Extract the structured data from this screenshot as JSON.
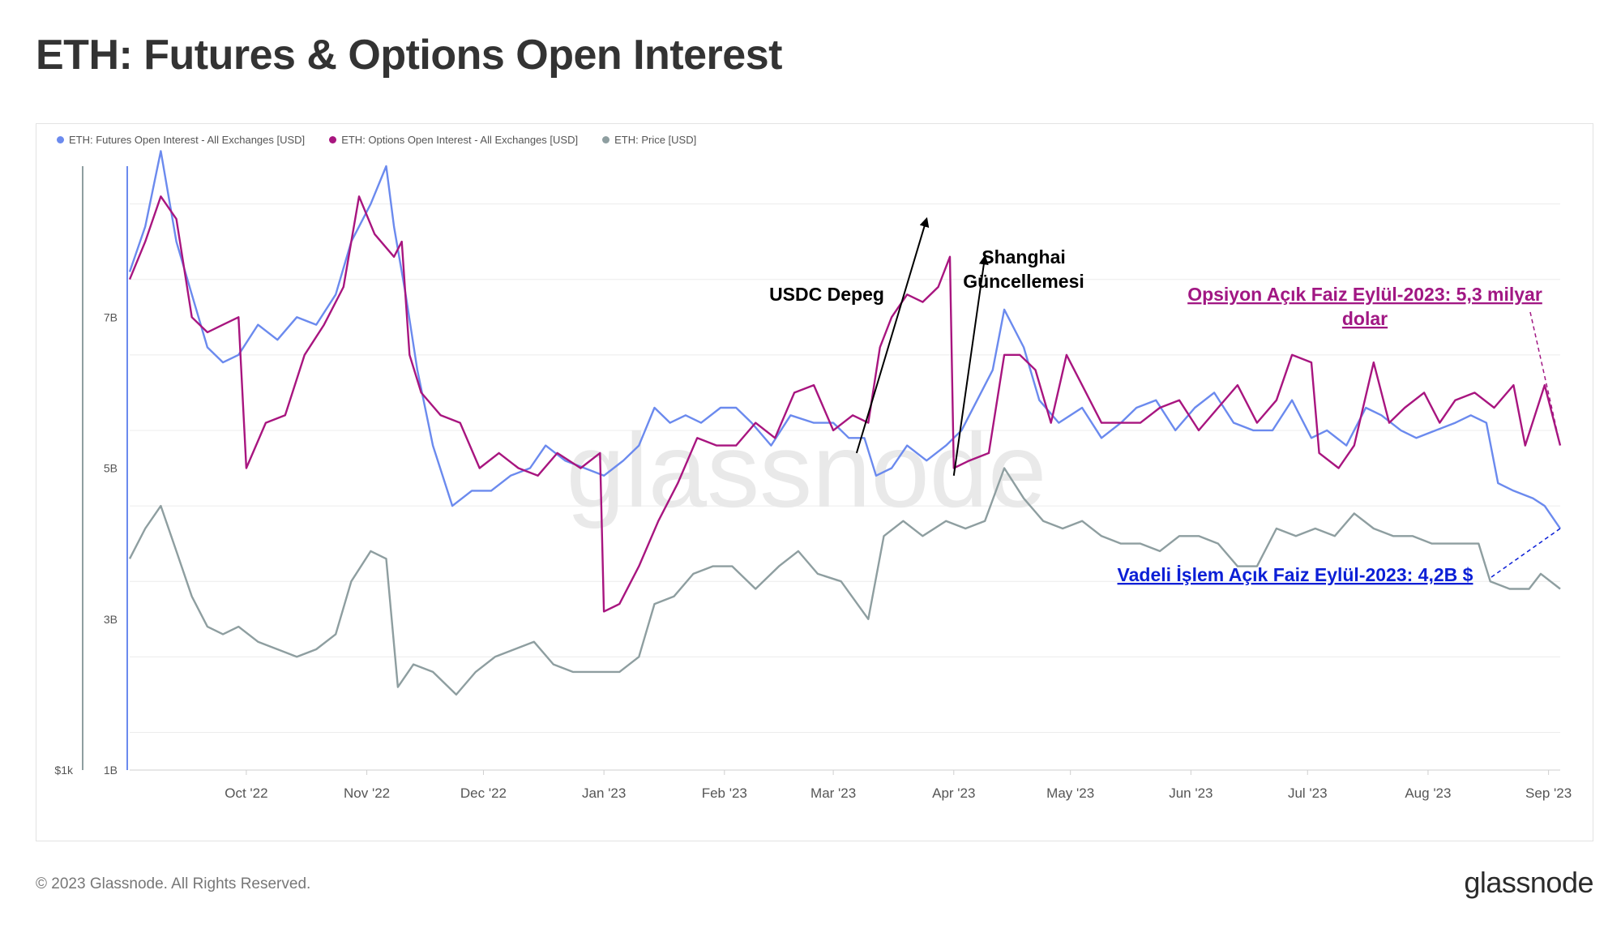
{
  "header": {
    "title": "ETH: Futures & Options Open Interest"
  },
  "footer": {
    "copyright": "© 2023 Glassnode. All Rights Reserved.",
    "brand": "glassnode"
  },
  "watermark": "glassnode",
  "colors": {
    "futures": "#6b8aee",
    "options": "#a8157f",
    "price": "#8e9ea0",
    "ann_options": "#a11783",
    "ann_futures": "#0b1fd6",
    "grid": "#ececec"
  },
  "chart_data": {
    "type": "line",
    "legend_position": "top-left",
    "grid": true,
    "x_tick_labels": [
      "Oct '22",
      "Nov '22",
      "Dec '22",
      "Jan '23",
      "Feb '23",
      "Mar '23",
      "Apr '23",
      "May '23",
      "Jun '23",
      "Jul '23",
      "Aug '23",
      "Sep '23"
    ],
    "y_left_tick_labels": [
      "$1k"
    ],
    "y_right_tick_labels": [
      "1B",
      "3B",
      "5B",
      "7B"
    ],
    "y_unit": "USD",
    "y_range": [
      1,
      9
    ],
    "x_range": [
      "2022-09-01",
      "2023-09-04"
    ],
    "series": [
      {
        "name": "ETH: Futures Open Interest - All Exchanges [USD]",
        "color_key": "futures",
        "points": [
          [
            "2022-09-01",
            7.6
          ],
          [
            "2022-09-05",
            8.2
          ],
          [
            "2022-09-09",
            9.2
          ],
          [
            "2022-09-13",
            8.0
          ],
          [
            "2022-09-17",
            7.3
          ],
          [
            "2022-09-21",
            6.6
          ],
          [
            "2022-09-25",
            6.4
          ],
          [
            "2022-09-29",
            6.5
          ],
          [
            "2022-10-04",
            6.9
          ],
          [
            "2022-10-09",
            6.7
          ],
          [
            "2022-10-14",
            7.0
          ],
          [
            "2022-10-19",
            6.9
          ],
          [
            "2022-10-24",
            7.3
          ],
          [
            "2022-10-28",
            8.0
          ],
          [
            "2022-11-02",
            8.5
          ],
          [
            "2022-11-06",
            9.0
          ],
          [
            "2022-11-08",
            8.2
          ],
          [
            "2022-11-11",
            7.3
          ],
          [
            "2022-11-14",
            6.3
          ],
          [
            "2022-11-18",
            5.3
          ],
          [
            "2022-11-23",
            4.5
          ],
          [
            "2022-11-28",
            4.7
          ],
          [
            "2022-12-03",
            4.7
          ],
          [
            "2022-12-08",
            4.9
          ],
          [
            "2022-12-13",
            5.0
          ],
          [
            "2022-12-17",
            5.3
          ],
          [
            "2022-12-22",
            5.1
          ],
          [
            "2022-12-27",
            5.0
          ],
          [
            "2023-01-01",
            4.9
          ],
          [
            "2023-01-06",
            5.1
          ],
          [
            "2023-01-10",
            5.3
          ],
          [
            "2023-01-14",
            5.8
          ],
          [
            "2023-01-18",
            5.6
          ],
          [
            "2023-01-22",
            5.7
          ],
          [
            "2023-01-26",
            5.6
          ],
          [
            "2023-01-31",
            5.8
          ],
          [
            "2023-02-04",
            5.8
          ],
          [
            "2023-02-08",
            5.6
          ],
          [
            "2023-02-13",
            5.3
          ],
          [
            "2023-02-18",
            5.7
          ],
          [
            "2023-02-24",
            5.6
          ],
          [
            "2023-03-01",
            5.6
          ],
          [
            "2023-03-05",
            5.4
          ],
          [
            "2023-03-09",
            5.4
          ],
          [
            "2023-03-12",
            4.9
          ],
          [
            "2023-03-16",
            5.0
          ],
          [
            "2023-03-20",
            5.3
          ],
          [
            "2023-03-25",
            5.1
          ],
          [
            "2023-03-30",
            5.3
          ],
          [
            "2023-04-03",
            5.5
          ],
          [
            "2023-04-07",
            5.9
          ],
          [
            "2023-04-11",
            6.3
          ],
          [
            "2023-04-14",
            7.1
          ],
          [
            "2023-04-19",
            6.6
          ],
          [
            "2023-04-23",
            5.9
          ],
          [
            "2023-04-28",
            5.6
          ],
          [
            "2023-05-04",
            5.8
          ],
          [
            "2023-05-09",
            5.4
          ],
          [
            "2023-05-14",
            5.6
          ],
          [
            "2023-05-18",
            5.8
          ],
          [
            "2023-05-23",
            5.9
          ],
          [
            "2023-05-28",
            5.5
          ],
          [
            "2023-06-02",
            5.8
          ],
          [
            "2023-06-07",
            6.0
          ],
          [
            "2023-06-12",
            5.6
          ],
          [
            "2023-06-17",
            5.5
          ],
          [
            "2023-06-22",
            5.5
          ],
          [
            "2023-06-27",
            5.9
          ],
          [
            "2023-07-02",
            5.4
          ],
          [
            "2023-07-06",
            5.5
          ],
          [
            "2023-07-11",
            5.3
          ],
          [
            "2023-07-16",
            5.8
          ],
          [
            "2023-07-20",
            5.7
          ],
          [
            "2023-07-25",
            5.5
          ],
          [
            "2023-07-29",
            5.4
          ],
          [
            "2023-08-03",
            5.5
          ],
          [
            "2023-08-08",
            5.6
          ],
          [
            "2023-08-12",
            5.7
          ],
          [
            "2023-08-16",
            5.6
          ],
          [
            "2023-08-19",
            4.8
          ],
          [
            "2023-08-23",
            4.7
          ],
          [
            "2023-08-28",
            4.6
          ],
          [
            "2023-08-31",
            4.5
          ],
          [
            "2023-09-04",
            4.2
          ]
        ]
      },
      {
        "name": "ETH: Options Open Interest - All Exchanges [USD]",
        "color_key": "options",
        "points": [
          [
            "2022-09-01",
            7.5
          ],
          [
            "2022-09-05",
            8.0
          ],
          [
            "2022-09-09",
            8.6
          ],
          [
            "2022-09-13",
            8.3
          ],
          [
            "2022-09-17",
            7.0
          ],
          [
            "2022-09-21",
            6.8
          ],
          [
            "2022-09-25",
            6.9
          ],
          [
            "2022-09-29",
            7.0
          ],
          [
            "2022-10-01",
            5.0
          ],
          [
            "2022-10-06",
            5.6
          ],
          [
            "2022-10-11",
            5.7
          ],
          [
            "2022-10-16",
            6.5
          ],
          [
            "2022-10-21",
            6.9
          ],
          [
            "2022-10-26",
            7.4
          ],
          [
            "2022-10-30",
            8.6
          ],
          [
            "2022-11-03",
            8.1
          ],
          [
            "2022-11-08",
            7.8
          ],
          [
            "2022-11-10",
            8.0
          ],
          [
            "2022-11-12",
            6.5
          ],
          [
            "2022-11-15",
            6.0
          ],
          [
            "2022-11-20",
            5.7
          ],
          [
            "2022-11-25",
            5.6
          ],
          [
            "2022-11-30",
            5.0
          ],
          [
            "2022-12-05",
            5.2
          ],
          [
            "2022-12-10",
            5.0
          ],
          [
            "2022-12-15",
            4.9
          ],
          [
            "2022-12-20",
            5.2
          ],
          [
            "2022-12-26",
            5.0
          ],
          [
            "2022-12-31",
            5.2
          ],
          [
            "2023-01-01",
            3.1
          ],
          [
            "2023-01-05",
            3.2
          ],
          [
            "2023-01-10",
            3.7
          ],
          [
            "2023-01-15",
            4.3
          ],
          [
            "2023-01-20",
            4.8
          ],
          [
            "2023-01-25",
            5.4
          ],
          [
            "2023-01-30",
            5.3
          ],
          [
            "2023-02-04",
            5.3
          ],
          [
            "2023-02-09",
            5.6
          ],
          [
            "2023-02-14",
            5.4
          ],
          [
            "2023-02-19",
            6.0
          ],
          [
            "2023-02-24",
            6.1
          ],
          [
            "2023-03-01",
            5.5
          ],
          [
            "2023-03-06",
            5.7
          ],
          [
            "2023-03-10",
            5.6
          ],
          [
            "2023-03-13",
            6.6
          ],
          [
            "2023-03-16",
            7.0
          ],
          [
            "2023-03-20",
            7.3
          ],
          [
            "2023-03-24",
            7.2
          ],
          [
            "2023-03-28",
            7.4
          ],
          [
            "2023-03-31",
            7.8
          ],
          [
            "2023-04-01",
            5.0
          ],
          [
            "2023-04-05",
            5.1
          ],
          [
            "2023-04-10",
            5.2
          ],
          [
            "2023-04-14",
            6.5
          ],
          [
            "2023-04-18",
            6.5
          ],
          [
            "2023-04-22",
            6.3
          ],
          [
            "2023-04-26",
            5.6
          ],
          [
            "2023-04-30",
            6.5
          ],
          [
            "2023-05-04",
            6.1
          ],
          [
            "2023-05-09",
            5.6
          ],
          [
            "2023-05-14",
            5.6
          ],
          [
            "2023-05-19",
            5.6
          ],
          [
            "2023-05-24",
            5.8
          ],
          [
            "2023-05-29",
            5.9
          ],
          [
            "2023-06-03",
            5.5
          ],
          [
            "2023-06-08",
            5.8
          ],
          [
            "2023-06-13",
            6.1
          ],
          [
            "2023-06-18",
            5.6
          ],
          [
            "2023-06-23",
            5.9
          ],
          [
            "2023-06-27",
            6.5
          ],
          [
            "2023-07-02",
            6.4
          ],
          [
            "2023-07-04",
            5.2
          ],
          [
            "2023-07-09",
            5.0
          ],
          [
            "2023-07-13",
            5.3
          ],
          [
            "2023-07-18",
            6.4
          ],
          [
            "2023-07-22",
            5.6
          ],
          [
            "2023-07-26",
            5.8
          ],
          [
            "2023-07-31",
            6.0
          ],
          [
            "2023-08-04",
            5.6
          ],
          [
            "2023-08-08",
            5.9
          ],
          [
            "2023-08-13",
            6.0
          ],
          [
            "2023-08-18",
            5.8
          ],
          [
            "2023-08-23",
            6.1
          ],
          [
            "2023-08-26",
            5.3
          ],
          [
            "2023-08-31",
            6.1
          ],
          [
            "2023-09-04",
            5.3
          ]
        ]
      },
      {
        "name": "ETH: Price [USD]",
        "color_key": "price",
        "points": [
          [
            "2022-09-01",
            3.8
          ],
          [
            "2022-09-05",
            4.2
          ],
          [
            "2022-09-09",
            4.5
          ],
          [
            "2022-09-13",
            3.9
          ],
          [
            "2022-09-17",
            3.3
          ],
          [
            "2022-09-21",
            2.9
          ],
          [
            "2022-09-25",
            2.8
          ],
          [
            "2022-09-29",
            2.9
          ],
          [
            "2022-10-04",
            2.7
          ],
          [
            "2022-10-09",
            2.6
          ],
          [
            "2022-10-14",
            2.5
          ],
          [
            "2022-10-19",
            2.6
          ],
          [
            "2022-10-24",
            2.8
          ],
          [
            "2022-10-28",
            3.5
          ],
          [
            "2022-11-02",
            3.9
          ],
          [
            "2022-11-06",
            3.8
          ],
          [
            "2022-11-09",
            2.1
          ],
          [
            "2022-11-13",
            2.4
          ],
          [
            "2022-11-18",
            2.3
          ],
          [
            "2022-11-24",
            2.0
          ],
          [
            "2022-11-29",
            2.3
          ],
          [
            "2022-12-04",
            2.5
          ],
          [
            "2022-12-09",
            2.6
          ],
          [
            "2022-12-14",
            2.7
          ],
          [
            "2022-12-19",
            2.4
          ],
          [
            "2022-12-24",
            2.3
          ],
          [
            "2022-12-30",
            2.3
          ],
          [
            "2023-01-05",
            2.3
          ],
          [
            "2023-01-10",
            2.5
          ],
          [
            "2023-01-14",
            3.2
          ],
          [
            "2023-01-19",
            3.3
          ],
          [
            "2023-01-24",
            3.6
          ],
          [
            "2023-01-29",
            3.7
          ],
          [
            "2023-02-03",
            3.7
          ],
          [
            "2023-02-09",
            3.4
          ],
          [
            "2023-02-15",
            3.7
          ],
          [
            "2023-02-20",
            3.9
          ],
          [
            "2023-02-25",
            3.6
          ],
          [
            "2023-03-03",
            3.5
          ],
          [
            "2023-03-10",
            3.0
          ],
          [
            "2023-03-14",
            4.1
          ],
          [
            "2023-03-19",
            4.3
          ],
          [
            "2023-03-24",
            4.1
          ],
          [
            "2023-03-30",
            4.3
          ],
          [
            "2023-04-04",
            4.2
          ],
          [
            "2023-04-09",
            4.3
          ],
          [
            "2023-04-14",
            5.0
          ],
          [
            "2023-04-19",
            4.6
          ],
          [
            "2023-04-24",
            4.3
          ],
          [
            "2023-04-29",
            4.2
          ],
          [
            "2023-05-04",
            4.3
          ],
          [
            "2023-05-09",
            4.1
          ],
          [
            "2023-05-14",
            4.0
          ],
          [
            "2023-05-19",
            4.0
          ],
          [
            "2023-05-24",
            3.9
          ],
          [
            "2023-05-29",
            4.1
          ],
          [
            "2023-06-03",
            4.1
          ],
          [
            "2023-06-08",
            4.0
          ],
          [
            "2023-06-13",
            3.7
          ],
          [
            "2023-06-18",
            3.7
          ],
          [
            "2023-06-23",
            4.2
          ],
          [
            "2023-06-28",
            4.1
          ],
          [
            "2023-07-03",
            4.2
          ],
          [
            "2023-07-08",
            4.1
          ],
          [
            "2023-07-13",
            4.4
          ],
          [
            "2023-07-18",
            4.2
          ],
          [
            "2023-07-23",
            4.1
          ],
          [
            "2023-07-28",
            4.1
          ],
          [
            "2023-08-02",
            4.0
          ],
          [
            "2023-08-08",
            4.0
          ],
          [
            "2023-08-14",
            4.0
          ],
          [
            "2023-08-17",
            3.5
          ],
          [
            "2023-08-22",
            3.4
          ],
          [
            "2023-08-27",
            3.4
          ],
          [
            "2023-08-30",
            3.6
          ],
          [
            "2023-09-04",
            3.4
          ]
        ]
      }
    ],
    "annotations": [
      {
        "text": "USDC Depeg",
        "arrow_from": [
          "2023-03-07",
          5.2
        ],
        "arrow_to": [
          "2023-03-25",
          8.3
        ]
      },
      {
        "text": "Shanghai",
        "text2": "Güncellemesi",
        "arrow_from": [
          "2023-04-01",
          4.9
        ],
        "arrow_to": [
          "2023-04-09",
          7.8
        ]
      },
      {
        "text": "Opsiyon Açık Faiz Eylül-2023: 5,3 milyar",
        "text2": "dolar",
        "color_key": "ann_options",
        "arrow_from": [
          "2023-08-24",
          7.0
        ],
        "arrow_to": [
          "2023-09-04",
          5.3
        ]
      },
      {
        "text": "Vadeli İşlem Açık Faiz Eylül-2023: 4,2B $",
        "color_key": "ann_futures",
        "arrow_from": [
          "2023-08-20",
          3.6
        ],
        "arrow_to": [
          "2023-09-04",
          4.2
        ]
      }
    ]
  }
}
